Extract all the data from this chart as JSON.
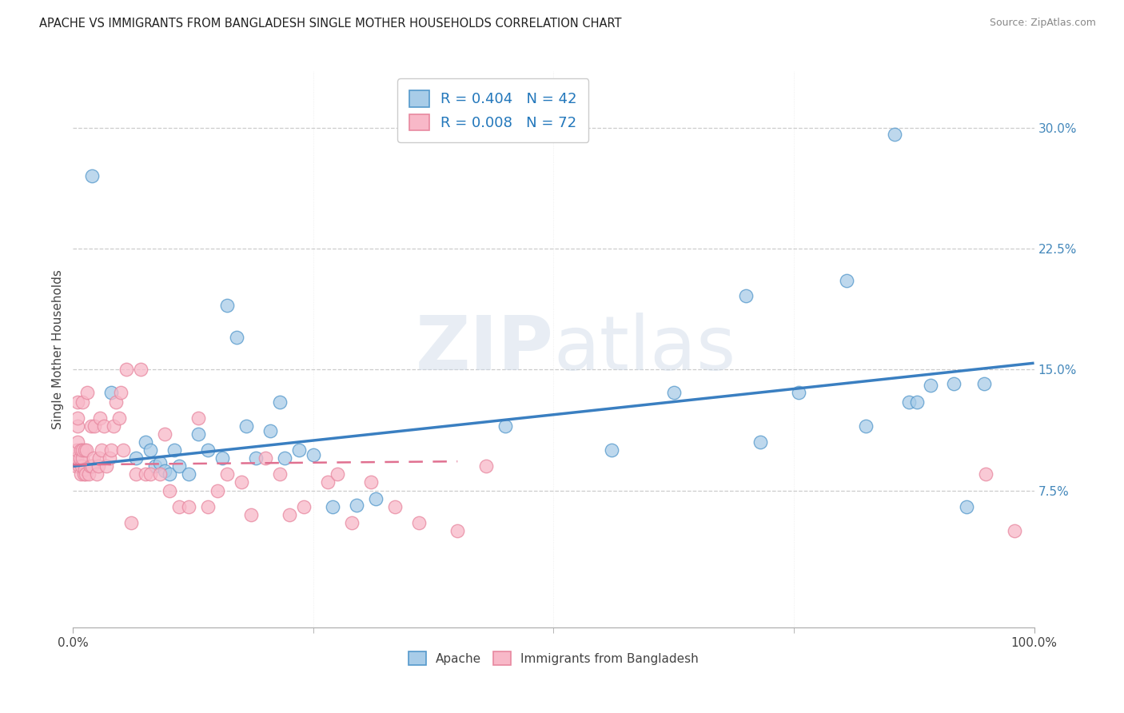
{
  "title": "APACHE VS IMMIGRANTS FROM BANGLADESH SINGLE MOTHER HOUSEHOLDS CORRELATION CHART",
  "source": "Source: ZipAtlas.com",
  "ylabel": "Single Mother Households",
  "xlim": [
    0.0,
    1.0
  ],
  "ylim": [
    -0.01,
    0.335
  ],
  "ytick_vals": [
    0.075,
    0.15,
    0.225,
    0.3
  ],
  "ytick_labels": [
    "7.5%",
    "15.0%",
    "22.5%",
    "30.0%"
  ],
  "xtick_vals": [
    0.0,
    1.0
  ],
  "xtick_labels": [
    "0.0%",
    "100.0%"
  ],
  "xtick_minor_vals": [
    0.25,
    0.5,
    0.75
  ],
  "legend1_r_label1": "R = 0.404",
  "legend1_n_label1": "N = 42",
  "legend1_r_label2": "R = 0.008",
  "legend1_n_label2": "N = 72",
  "legend2_labels": [
    "Apache",
    "Immigrants from Bangladesh"
  ],
  "blue_face": "#a8cce8",
  "blue_edge": "#5599cc",
  "pink_face": "#f8b8c8",
  "pink_edge": "#e888a0",
  "blue_line": "#3a7fc1",
  "pink_line": "#e07090",
  "watermark_zip": "ZIP",
  "watermark_atlas": "atlas",
  "grid_color": "#cccccc",
  "apache_x": [
    0.02,
    0.04,
    0.065,
    0.075,
    0.08,
    0.085,
    0.09,
    0.095,
    0.1,
    0.105,
    0.11,
    0.12,
    0.13,
    0.14,
    0.155,
    0.16,
    0.17,
    0.18,
    0.19,
    0.205,
    0.215,
    0.22,
    0.235,
    0.25,
    0.27,
    0.295,
    0.315,
    0.45,
    0.56,
    0.625,
    0.7,
    0.715,
    0.755,
    0.805,
    0.825,
    0.855,
    0.87,
    0.878,
    0.892,
    0.916,
    0.93,
    0.948
  ],
  "apache_y": [
    0.27,
    0.136,
    0.095,
    0.105,
    0.1,
    0.09,
    0.092,
    0.087,
    0.085,
    0.1,
    0.09,
    0.085,
    0.11,
    0.1,
    0.095,
    0.19,
    0.17,
    0.115,
    0.095,
    0.112,
    0.13,
    0.095,
    0.1,
    0.097,
    0.065,
    0.066,
    0.07,
    0.115,
    0.1,
    0.136,
    0.196,
    0.105,
    0.136,
    0.205,
    0.115,
    0.296,
    0.13,
    0.13,
    0.14,
    0.141,
    0.065,
    0.141
  ],
  "bangla_x": [
    0.003,
    0.004,
    0.004,
    0.005,
    0.005,
    0.005,
    0.005,
    0.006,
    0.007,
    0.008,
    0.008,
    0.009,
    0.01,
    0.01,
    0.01,
    0.011,
    0.012,
    0.012,
    0.013,
    0.014,
    0.015,
    0.016,
    0.018,
    0.019,
    0.02,
    0.021,
    0.022,
    0.025,
    0.026,
    0.027,
    0.028,
    0.03,
    0.032,
    0.035,
    0.038,
    0.04,
    0.042,
    0.045,
    0.048,
    0.05,
    0.052,
    0.055,
    0.06,
    0.065,
    0.07,
    0.075,
    0.08,
    0.09,
    0.095,
    0.1,
    0.11,
    0.12,
    0.13,
    0.14,
    0.15,
    0.16,
    0.175,
    0.185,
    0.2,
    0.215,
    0.225,
    0.24,
    0.265,
    0.275,
    0.29,
    0.31,
    0.335,
    0.36,
    0.4,
    0.43,
    0.95,
    0.98
  ],
  "bangla_y": [
    0.09,
    0.095,
    0.1,
    0.105,
    0.115,
    0.12,
    0.13,
    0.09,
    0.095,
    0.1,
    0.085,
    0.09,
    0.095,
    0.1,
    0.13,
    0.085,
    0.088,
    0.1,
    0.085,
    0.1,
    0.136,
    0.085,
    0.09,
    0.115,
    0.09,
    0.095,
    0.115,
    0.085,
    0.09,
    0.095,
    0.12,
    0.1,
    0.115,
    0.09,
    0.095,
    0.1,
    0.115,
    0.13,
    0.12,
    0.136,
    0.1,
    0.15,
    0.055,
    0.085,
    0.15,
    0.085,
    0.085,
    0.085,
    0.11,
    0.075,
    0.065,
    0.065,
    0.12,
    0.065,
    0.075,
    0.085,
    0.08,
    0.06,
    0.095,
    0.085,
    0.06,
    0.065,
    0.08,
    0.085,
    0.055,
    0.08,
    0.065,
    0.055,
    0.05,
    0.09,
    0.085,
    0.05
  ],
  "blue_trend": [
    0.0,
    1.0,
    0.09,
    0.154
  ],
  "pink_trend": [
    0.0,
    0.4,
    0.091,
    0.093
  ]
}
